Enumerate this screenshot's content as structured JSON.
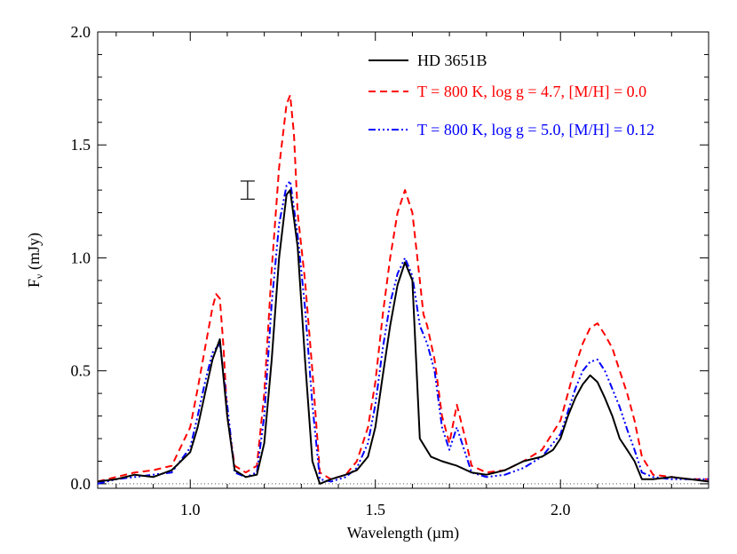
{
  "chart_data": {
    "type": "line",
    "xlabel": "Wavelength (µm)",
    "ylabel": {
      "main": "F",
      "sub": "ν",
      "unit": " (mJy)"
    },
    "xlim": [
      0.75,
      2.4
    ],
    "ylim": [
      -0.02,
      2.0
    ],
    "x_ticks": [
      1.0,
      1.5,
      2.0
    ],
    "x_tick_labels": [
      "1.0",
      "1.5",
      "2.0"
    ],
    "y_ticks": [
      0.0,
      0.5,
      1.0,
      1.5,
      2.0
    ],
    "y_tick_labels": [
      "0.0",
      "0.5",
      "1.0",
      "1.5",
      "2.0"
    ],
    "zero_line": true,
    "grid": false,
    "legend_position": "top-right",
    "error_bar": {
      "x": 1.155,
      "y_low": 1.26,
      "y_high": 1.34
    },
    "series": [
      {
        "name": "HD 3651B",
        "color": "#000000",
        "style": "solid",
        "x": [
          0.75,
          0.8,
          0.85,
          0.9,
          0.95,
          1.0,
          1.02,
          1.04,
          1.06,
          1.08,
          1.1,
          1.12,
          1.15,
          1.18,
          1.2,
          1.22,
          1.24,
          1.26,
          1.27,
          1.29,
          1.31,
          1.33,
          1.35,
          1.38,
          1.42,
          1.45,
          1.48,
          1.5,
          1.52,
          1.54,
          1.56,
          1.58,
          1.6,
          1.62,
          1.65,
          1.68,
          1.72,
          1.76,
          1.8,
          1.85,
          1.9,
          1.95,
          1.98,
          2.0,
          2.02,
          2.04,
          2.06,
          2.08,
          2.1,
          2.12,
          2.14,
          2.16,
          2.18,
          2.2,
          2.22,
          2.25,
          2.3,
          2.35,
          2.4
        ],
        "y": [
          0.01,
          0.02,
          0.04,
          0.03,
          0.06,
          0.14,
          0.25,
          0.4,
          0.55,
          0.64,
          0.3,
          0.06,
          0.03,
          0.04,
          0.18,
          0.55,
          1.0,
          1.28,
          1.3,
          1.05,
          0.55,
          0.1,
          0.0,
          0.02,
          0.04,
          0.06,
          0.12,
          0.25,
          0.48,
          0.7,
          0.88,
          0.98,
          0.9,
          0.2,
          0.12,
          0.1,
          0.08,
          0.05,
          0.04,
          0.06,
          0.1,
          0.12,
          0.15,
          0.2,
          0.3,
          0.38,
          0.44,
          0.48,
          0.45,
          0.38,
          0.3,
          0.2,
          0.15,
          0.1,
          0.02,
          0.02,
          0.03,
          0.02,
          0.01
        ]
      },
      {
        "name": "T = 800 K, log g = 4.7, [M/H] = 0.0",
        "color": "#ff0000",
        "style": "dashed",
        "x": [
          0.75,
          0.8,
          0.85,
          0.9,
          0.95,
          1.0,
          1.02,
          1.04,
          1.06,
          1.07,
          1.08,
          1.09,
          1.1,
          1.12,
          1.15,
          1.18,
          1.2,
          1.22,
          1.24,
          1.26,
          1.27,
          1.28,
          1.29,
          1.31,
          1.33,
          1.35,
          1.38,
          1.42,
          1.45,
          1.48,
          1.5,
          1.52,
          1.54,
          1.56,
          1.58,
          1.6,
          1.62,
          1.63,
          1.64,
          1.66,
          1.68,
          1.7,
          1.72,
          1.74,
          1.76,
          1.8,
          1.85,
          1.9,
          1.95,
          2.0,
          2.02,
          2.04,
          2.06,
          2.08,
          2.1,
          2.12,
          2.14,
          2.16,
          2.18,
          2.2,
          2.22,
          2.25,
          2.3,
          2.35,
          2.4
        ],
        "y": [
          0.01,
          0.03,
          0.05,
          0.06,
          0.08,
          0.25,
          0.42,
          0.6,
          0.78,
          0.84,
          0.82,
          0.6,
          0.3,
          0.08,
          0.05,
          0.08,
          0.4,
          0.95,
          1.4,
          1.68,
          1.72,
          1.55,
          1.2,
          0.9,
          0.5,
          0.05,
          0.02,
          0.04,
          0.1,
          0.25,
          0.45,
          0.75,
          1.0,
          1.2,
          1.3,
          1.2,
          0.9,
          0.75,
          0.7,
          0.55,
          0.3,
          0.18,
          0.35,
          0.22,
          0.08,
          0.05,
          0.06,
          0.1,
          0.15,
          0.28,
          0.4,
          0.52,
          0.62,
          0.69,
          0.71,
          0.66,
          0.6,
          0.5,
          0.4,
          0.28,
          0.12,
          0.04,
          0.03,
          0.02,
          0.02
        ]
      },
      {
        "name": "T = 800 K, log g = 5.0, [M/H] = 0.12",
        "color": "#0000ff",
        "style": "dashdot",
        "x": [
          0.75,
          0.8,
          0.85,
          0.9,
          0.95,
          1.0,
          1.02,
          1.04,
          1.06,
          1.08,
          1.1,
          1.12,
          1.15,
          1.18,
          1.2,
          1.22,
          1.24,
          1.26,
          1.27,
          1.29,
          1.31,
          1.33,
          1.35,
          1.38,
          1.42,
          1.45,
          1.48,
          1.5,
          1.52,
          1.54,
          1.56,
          1.58,
          1.6,
          1.62,
          1.64,
          1.66,
          1.68,
          1.7,
          1.72,
          1.74,
          1.76,
          1.8,
          1.85,
          1.9,
          1.95,
          2.0,
          2.02,
          2.04,
          2.06,
          2.08,
          2.1,
          2.12,
          2.14,
          2.16,
          2.18,
          2.2,
          2.22,
          2.25,
          2.3,
          2.35,
          2.4
        ],
        "y": [
          0.0,
          0.02,
          0.03,
          0.04,
          0.05,
          0.16,
          0.3,
          0.45,
          0.58,
          0.62,
          0.35,
          0.05,
          0.03,
          0.05,
          0.3,
          0.8,
          1.15,
          1.32,
          1.34,
          1.1,
          0.78,
          0.35,
          0.02,
          0.01,
          0.03,
          0.07,
          0.18,
          0.35,
          0.6,
          0.8,
          0.93,
          1.0,
          0.92,
          0.7,
          0.62,
          0.5,
          0.25,
          0.15,
          0.25,
          0.15,
          0.05,
          0.03,
          0.04,
          0.07,
          0.12,
          0.22,
          0.32,
          0.42,
          0.5,
          0.54,
          0.55,
          0.5,
          0.42,
          0.34,
          0.24,
          0.15,
          0.05,
          0.03,
          0.02,
          0.02,
          0.02
        ]
      }
    ]
  }
}
